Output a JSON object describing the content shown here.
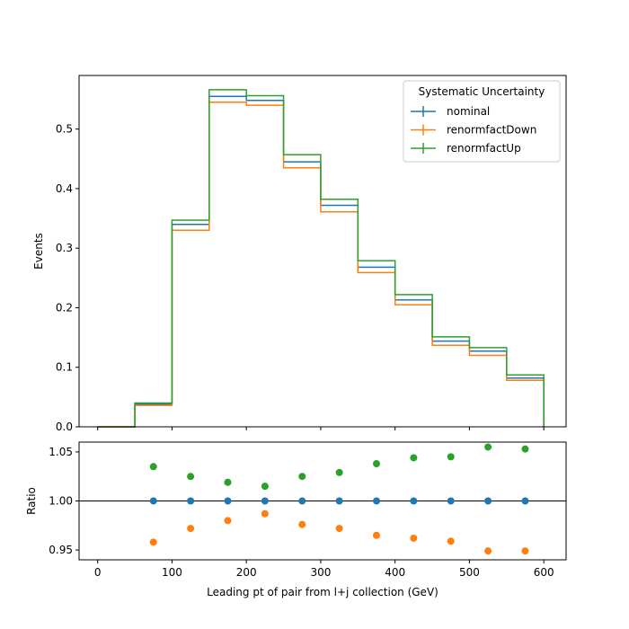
{
  "chart_data": {
    "type": "step",
    "bin_edges": [
      0,
      50,
      100,
      150,
      200,
      250,
      300,
      350,
      400,
      450,
      500,
      550,
      600
    ],
    "series": [
      {
        "name": "nominal",
        "color": "#1f77b4",
        "values": [
          0.0,
          0.038,
          0.34,
          0.555,
          0.548,
          0.445,
          0.372,
          0.268,
          0.213,
          0.144,
          0.127,
          0.082
        ]
      },
      {
        "name": "renormfactDown",
        "color": "#ff7f0e",
        "values": [
          0.0,
          0.036,
          0.33,
          0.545,
          0.54,
          0.435,
          0.361,
          0.259,
          0.205,
          0.137,
          0.12,
          0.078
        ]
      },
      {
        "name": "renormfactUp",
        "color": "#2ca02c",
        "values": [
          0.0,
          0.04,
          0.347,
          0.566,
          0.556,
          0.457,
          0.382,
          0.279,
          0.222,
          0.151,
          0.133,
          0.087
        ]
      }
    ],
    "ylabel": "Events",
    "ylim": [
      0,
      0.59
    ],
    "yticks": [
      "0.0",
      "0.1",
      "0.2",
      "0.3",
      "0.4",
      "0.5"
    ],
    "xlabel": "Leading pt of pair from l+j collection (GeV)",
    "xlim": [
      -25,
      630
    ],
    "xticks": [
      "0",
      "100",
      "200",
      "300",
      "400",
      "500",
      "600"
    ],
    "legend": {
      "title": "Systematic Uncertainty",
      "placement": "top-right"
    },
    "ratio": {
      "ylabel": "Ratio",
      "ylim": [
        0.94,
        1.06
      ],
      "yticks": [
        "0.95",
        "1.00",
        "1.05"
      ],
      "reference_line": 1.0,
      "x": [
        75,
        125,
        175,
        225,
        275,
        325,
        375,
        425,
        475,
        525,
        575
      ],
      "series": [
        {
          "name": "nominal",
          "color": "#1f77b4",
          "values": [
            1.0,
            1.0,
            1.0,
            1.0,
            1.0,
            1.0,
            1.0,
            1.0,
            1.0,
            1.0,
            1.0
          ]
        },
        {
          "name": "renormfactDown",
          "color": "#ff7f0e",
          "values": [
            0.958,
            0.972,
            0.98,
            0.987,
            0.976,
            0.972,
            0.965,
            0.962,
            0.959,
            0.949,
            0.949
          ]
        },
        {
          "name": "renormfactUp",
          "color": "#2ca02c",
          "values": [
            1.035,
            1.025,
            1.019,
            1.015,
            1.025,
            1.029,
            1.038,
            1.044,
            1.045,
            1.055,
            1.053
          ]
        }
      ]
    }
  }
}
